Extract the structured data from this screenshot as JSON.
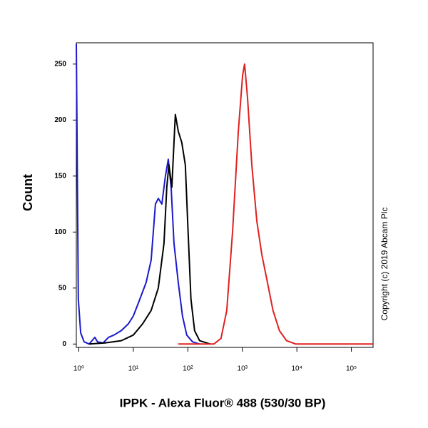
{
  "chart_data": {
    "type": "line",
    "x_label": "IPPK - Alexa Fluor® 488 (530/30 BP)",
    "y_label": "Count",
    "annotation": "Copyright (c) 2019 Abcam Plc",
    "xscale": "log",
    "xlim": [
      0.9,
      250000
    ],
    "ylim": [
      -3,
      269
    ],
    "xticks": [
      {
        "value": 1,
        "label": "10⁰"
      },
      {
        "value": 10,
        "label": "10¹"
      },
      {
        "value": 100,
        "label": "10²"
      },
      {
        "value": 1000,
        "label": "10³"
      },
      {
        "value": 10000,
        "label": "10⁴"
      },
      {
        "value": 100000,
        "label": "10⁵"
      }
    ],
    "yticks": [
      0,
      50,
      100,
      150,
      200,
      250
    ],
    "series": [
      {
        "color": "#1a1acc",
        "x": [
          0.9,
          0.98,
          1.08,
          1.25,
          1.55,
          1.97,
          2.2,
          2.8,
          3.5,
          4.4,
          6.0,
          8.1,
          10,
          12.7,
          17.2,
          21.2,
          25.4,
          28.7,
          33.4,
          38.8,
          43.7,
          49.3,
          55.6,
          66.7,
          79.8,
          95.5,
          122,
          164
        ],
        "values": [
          268,
          40,
          10,
          2,
          0,
          6,
          2,
          1,
          6,
          8,
          12,
          18,
          25,
          38,
          55,
          75,
          125,
          130,
          125,
          150,
          165,
          140,
          90,
          55,
          25,
          8,
          2,
          0
        ]
      },
      {
        "color": "#000000",
        "x": [
          1.55,
          3.0,
          6.0,
          10,
          14.8,
          21.2,
          28.7,
          36.5,
          41.1,
          45,
          50.8,
          58.9,
          66.7,
          77.4,
          89.8,
          101,
          114,
          133,
          164,
          258
        ],
        "values": [
          0,
          1,
          3,
          8,
          18,
          30,
          50,
          90,
          140,
          160,
          140,
          205,
          190,
          180,
          160,
          100,
          40,
          12,
          3,
          0
        ]
      },
      {
        "color": "#e02020",
        "x": [
          66.7,
          300,
          405,
          518,
          660,
          843,
          1010,
          1100,
          1245,
          1490,
          1840,
          2270,
          2880,
          3650,
          4780,
          6460,
          9550,
          250000
        ],
        "values": [
          0,
          0,
          5,
          30,
          100,
          190,
          240,
          250,
          220,
          160,
          110,
          80,
          55,
          30,
          12,
          3,
          0,
          0
        ]
      }
    ]
  }
}
